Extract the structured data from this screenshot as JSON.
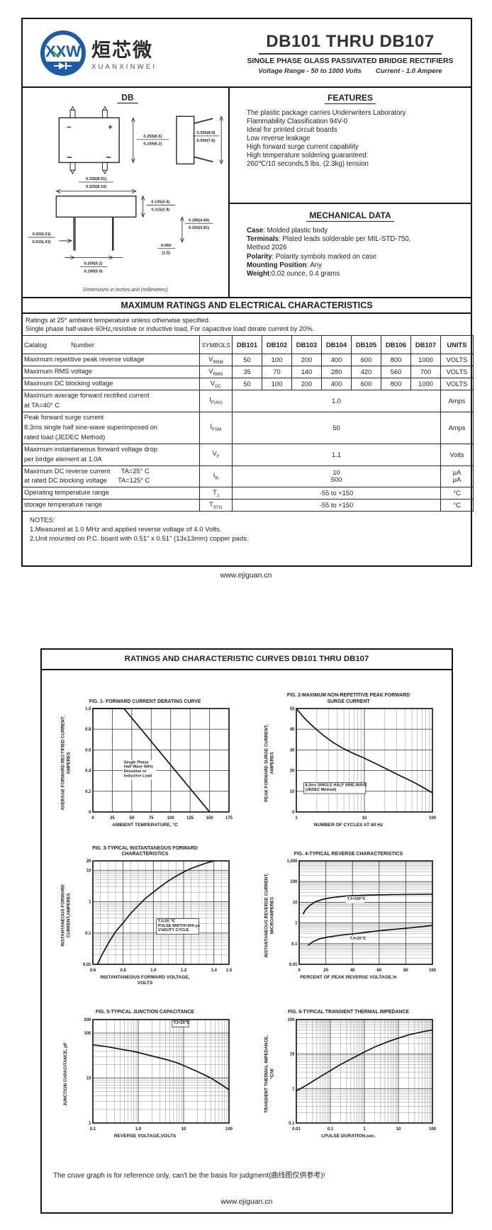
{
  "page1": {
    "logo": {
      "monogram": "XXW",
      "cn": "烜芯微",
      "en": "XUANXINWEI",
      "blue": "#1c5ca8",
      "green": "#3fa13f"
    },
    "header": {
      "title": "DB101 THRU DB107",
      "subtitle": "SINGLE PHASE GLASS PASSIVATED BRIDGE RECTIFIERS",
      "tagline_left": "Voltage Range - 50 to 1000 Volts",
      "tagline_right": "Current -  1.0 Ampere"
    },
    "package": {
      "name": "DB",
      "caption": "Dimensions in inches and (millimeters)",
      "marks": {
        "minus": "−",
        "plus": "+",
        "ac1": "~",
        "ac2": "~"
      },
      "dims": {
        "height_top": "0.255(6.5)",
        "height_bot": "0.245(6.2)",
        "side_top": "0.350(8.9)",
        "side_bot": "0.300(7.6)",
        "width_top": "0.335(8.51)",
        "width_bot": "0.325(8.10)",
        "body_top": "0.135(3.4)",
        "body_bot": "0.115(2.9)",
        "lead_top": "0.185(4.69)",
        "lead_bot": "0.150(3.81)",
        "leadw_top": "0.020(.51)",
        "leadw_bot": "0.016(.41)",
        "pitch_top": "0.205(5.2)",
        "pitch_bot": "0.195(5.0)",
        "stand_top": "0.060",
        "stand_bot": "(1.5)"
      }
    },
    "features": {
      "title": "FEATURES",
      "lines": [
        "The plastic package carries Underwriters Laboratory",
        "Flammability Classification 94V-0",
        "Ideal for printed circuit boards",
        "Low reverse leakage",
        "High forward surge current capability",
        "High temperature soldering guaranteed:",
        "260℃/10 seconds,5 lbs. (2.3kg) tension"
      ]
    },
    "mechanical": {
      "title": "MECHANICAL DATA",
      "items": [
        {
          "key": "Case",
          "text": ": Molded plastic body"
        },
        {
          "key": "Terminals",
          "text": ": Plated leads solderable per MIL-STD-750,"
        },
        {
          "key": "",
          "text": " Method 2026"
        },
        {
          "key": "Polarity",
          "text": ": Polarity symbols marked on case"
        },
        {
          "key": "Mounting Position",
          "text": ": Any"
        },
        {
          "key": "Weight",
          "text": ":0.02 ounce, 0.4 grams"
        }
      ]
    },
    "ratings": {
      "title": "MAXIMUM RATINGS AND ELECTRICAL CHARACTERISTICS",
      "conditions": [
        "Ratings at 25* ambient temperature unless otherwise specified.",
        "Single phase half-wave 60Hz,resistive or inductive load, For capacitive load derate current by 20%."
      ],
      "col_headers": {
        "catalog": "Catalog",
        "number": "Number",
        "symbols": "SYMBOLS",
        "parts": [
          "DB101",
          "DB102",
          "DB103",
          "DB104",
          "DB105",
          "DB106",
          "DB107"
        ],
        "units": "UNITS"
      },
      "rows": [
        {
          "label_lines": [
            "Maximum repetitive peak reverse voltage"
          ],
          "sym": "V",
          "sub": "RRM",
          "values": [
            "50",
            "100",
            "200",
            "400",
            "600",
            "800",
            "1000"
          ],
          "units": [
            "VOLTS"
          ]
        },
        {
          "label_lines": [
            "Maximum RMS voltage"
          ],
          "sym": "V",
          "sub": "RMS",
          "values": [
            "35",
            "70",
            "140",
            "280",
            "420",
            "560",
            "700"
          ],
          "units": [
            "VOLTS"
          ]
        },
        {
          "label_lines": [
            "Maximum DC blocking voltage"
          ],
          "sym": "V",
          "sub": "DC",
          "values": [
            "50",
            "100",
            "200",
            "400",
            "600",
            "800",
            "1000"
          ],
          "units": [
            "VOLTS"
          ]
        },
        {
          "label_lines": [
            "Maximum average forward rectified current",
            "at TA=40° C"
          ],
          "sym": "I",
          "sub": "F(AV)",
          "span": "1.0",
          "units": [
            "Amps"
          ]
        },
        {
          "label_lines": [
            "Peak forward surge current",
            "8.3ms single half sine-wave superimposed on",
            "rated load (JEDEC Method)"
          ],
          "sym": "I",
          "sub": "FSM",
          "span": "50",
          "units": [
            "Amps"
          ]
        },
        {
          "label_lines": [
            "Maximum instantaneous forward voltage drop",
            "per birdge element at 1.0A"
          ],
          "sym": "V",
          "sub": "F",
          "span": "1.1",
          "units": [
            "Volts"
          ]
        },
        {
          "label_lines": [
            "Maximum DC reverse current      TA=25° C",
            "at rated DC blocking voltage      TA=125° C"
          ],
          "sym": "I",
          "sub": "R",
          "span_lines": [
            "10",
            "500"
          ],
          "units": [
            "μA",
            "μA"
          ]
        },
        {
          "label_lines": [
            "Operating temperature range"
          ],
          "sym": "T",
          "sub": "J",
          "span": "-55 to +150",
          "units": [
            "°C"
          ]
        },
        {
          "label_lines": [
            "storage temperature range"
          ],
          "sym": "T",
          "sub": "STG",
          "span": "-55 to +150",
          "units": [
            "°C"
          ]
        }
      ],
      "notes": [
        "NOTES:",
        "1.Measured at 1.0 MHz and applied reverse voltage of 4.0 Volts.",
        "2.Unit mounted on P.C. board with 0.51\"  x 0.51\"  (13x13mm) copper pads."
      ]
    },
    "footer": "www.ejiguan.cn"
  },
  "page2": {
    "title": "RATINGS AND CHARACTERISTIC CURVES DB101 THRU DB107",
    "note": "The cruve graph is for reference only, can't be the basis for judgment(曲线图仅供参考)!",
    "footer": "www.ejiguan.cn"
  },
  "chart_data": [
    {
      "id": "fig1",
      "type": "line",
      "title": "FIG. 1- FORWARD CURRENT DERATING CURVE",
      "ylabel": "AVERAGE FORWARD RECTIFIED CURRENT,\nAMPERES",
      "xlabel": "AMBIENT TEMPERATURE, °C",
      "xscale": "linear",
      "xmin": 0,
      "xmax": 175,
      "yscale": "linear",
      "ymin": 0,
      "ymax": 1.0,
      "xticks": [
        {
          "v": 0,
          "l": "0"
        },
        {
          "v": 25,
          "l": "25"
        },
        {
          "v": 50,
          "l": "50"
        },
        {
          "v": 75,
          "l": "75"
        },
        {
          "v": 100,
          "l": "100"
        },
        {
          "v": 125,
          "l": "125"
        },
        {
          "v": 150,
          "l": "150"
        },
        {
          "v": 175,
          "l": "175"
        }
      ],
      "yticks": [
        {
          "v": 0,
          "l": "0"
        },
        {
          "v": 0.2,
          "l": "0.2"
        },
        {
          "v": 0.4,
          "l": "0.4"
        },
        {
          "v": 0.6,
          "l": "0.6"
        },
        {
          "v": 0.8,
          "l": "0.8"
        },
        {
          "v": 1.0,
          "l": "1.0"
        }
      ],
      "series": [
        {
          "name": "derating-curve",
          "points": [
            [
              0,
              1
            ],
            [
              40,
              1
            ],
            [
              150,
              0
            ]
          ]
        }
      ],
      "annotations": [
        {
          "x": 40,
          "y": 0.47,
          "lines": [
            "Single Phase",
            "Half Wave 60Hz",
            "Resistive or",
            "Inductive Load"
          ],
          "boxed": false
        }
      ]
    },
    {
      "id": "fig2",
      "type": "line",
      "title": "FIG. 2-MAXIMUM NON-REPETITIVE PEAK FORWARD\nSURGE CURRENT",
      "ylabel": "PEAK  FORWARD SURGE CURRENT,\nAMPERES",
      "xlabel": "NUMBER OF CYCLES AT 60 Hz",
      "xscale": "log",
      "xmin": 1,
      "xmax": 100,
      "yscale": "linear",
      "ymin": 0,
      "ymax": 50,
      "xticks": [
        {
          "v": 1,
          "l": "1"
        },
        {
          "v": 10,
          "l": "10"
        },
        {
          "v": 100,
          "l": "100"
        }
      ],
      "yticks": [
        {
          "v": 0,
          "l": "0"
        },
        {
          "v": 10,
          "l": "10"
        },
        {
          "v": 20,
          "l": "20"
        },
        {
          "v": 30,
          "l": "30"
        },
        {
          "v": 40,
          "l": "40"
        },
        {
          "v": 50,
          "l": "50"
        }
      ],
      "series": [
        {
          "name": "surge-current",
          "points": [
            [
              1,
              50
            ],
            [
              1.3,
              45.5
            ],
            [
              1.8,
              41
            ],
            [
              2.5,
              37
            ],
            [
              3.5,
              33.5
            ],
            [
              5,
              30.5
            ],
            [
              7,
              28.2
            ],
            [
              10,
              26
            ],
            [
              15,
              23.2
            ],
            [
              22,
              20.5
            ],
            [
              33,
              17.6
            ],
            [
              50,
              14.8
            ],
            [
              70,
              12.2
            ],
            [
              100,
              9.2
            ]
          ]
        }
      ],
      "annotations": [
        {
          "x": 1.35,
          "y": 12.5,
          "lines": [
            "8.3ms SINGLE HALF SINE-WAVE",
            "(JEDEC Method)"
          ],
          "boxed": true
        }
      ]
    },
    {
      "id": "fig3",
      "type": "line",
      "title": "FIG. 3-TYPICAL INSTANTANEOUS FORWARD\nCHARACTERISTICS",
      "ylabel": "INSTANTANEOUS FORWARD\nCURRENT,AMPERES",
      "xlabel": "INSTANTANEOUS FORWARD VOLTAGE,\nVOLTS",
      "xscale": "linear",
      "xmin": 0.6,
      "xmax": 1.5,
      "xminor": 0.05,
      "yscale": "log",
      "ymin": 0.01,
      "ymax": 20,
      "xticks": [
        {
          "v": 0.6,
          "l": "0.6"
        },
        {
          "v": 0.8,
          "l": "0.8"
        },
        {
          "v": 1.0,
          "l": "1.0"
        },
        {
          "v": 1.2,
          "l": "1.2"
        },
        {
          "v": 1.4,
          "l": "1.4"
        },
        {
          "v": 1.5,
          "l": "1.5"
        }
      ],
      "yticks": [
        {
          "v": 0.01,
          "l": "0.01"
        },
        {
          "v": 0.1,
          "l": "0.1"
        },
        {
          "v": 1,
          "l": "1"
        },
        {
          "v": 10,
          "l": "10"
        },
        {
          "v": 20,
          "l": "20"
        }
      ],
      "series": [
        {
          "name": "forward-characteristic",
          "points": [
            [
              0.63,
              0.01
            ],
            [
              0.66,
              0.02
            ],
            [
              0.7,
              0.045
            ],
            [
              0.75,
              0.11
            ],
            [
              0.8,
              0.21
            ],
            [
              0.85,
              0.42
            ],
            [
              0.9,
              0.75
            ],
            [
              0.95,
              1.3
            ],
            [
              1.0,
              2.0
            ],
            [
              1.05,
              3.1
            ],
            [
              1.1,
              4.6
            ],
            [
              1.15,
              6.5
            ],
            [
              1.2,
              8.8
            ],
            [
              1.25,
              11.5
            ],
            [
              1.3,
              14
            ],
            [
              1.35,
              17
            ],
            [
              1.4,
              20
            ]
          ]
        }
      ],
      "annotations": [
        {
          "x": 1.03,
          "y": 0.22,
          "lines": [
            "TJ=25 ℃",
            "PULSE WIDTH=300 μs",
            "1%DUTY CYCLE"
          ],
          "boxed": true
        }
      ]
    },
    {
      "id": "fig4",
      "type": "line",
      "title": "FIG. 4-TYPICAL REVERSE CHARACTERISTICS",
      "ylabel": "INSTANTANEOUS REVERSE CURRENT,\nMICROAMPERES",
      "xlabel": "PERCENT OF PEAK REVERSE VOLTAGE,%",
      "xscale": "linear",
      "xmin": 0,
      "xmax": 100,
      "yscale": "log",
      "ymin": 0.01,
      "ymax": 1000,
      "xticks": [
        {
          "v": 0,
          "l": "0"
        },
        {
          "v": 20,
          "l": "20"
        },
        {
          "v": 40,
          "l": "40"
        },
        {
          "v": 60,
          "l": "60"
        },
        {
          "v": 80,
          "l": "80"
        },
        {
          "v": 100,
          "l": "100"
        }
      ],
      "yticks": [
        {
          "v": 0.01,
          "l": "0.01"
        },
        {
          "v": 0.1,
          "l": "0.1"
        },
        {
          "v": 1,
          "l": "1"
        },
        {
          "v": 10,
          "l": "10"
        },
        {
          "v": 100,
          "l": "100"
        },
        {
          "v": 1000,
          "l": "1,000"
        }
      ],
      "series": [
        {
          "name": "TJ=100C",
          "points": [
            [
              3,
              2.8
            ],
            [
              5,
              4.5
            ],
            [
              8,
              7
            ],
            [
              12,
              10.5
            ],
            [
              18,
              14
            ],
            [
              25,
              17
            ],
            [
              35,
              20
            ],
            [
              50,
              22
            ],
            [
              70,
              23.5
            ],
            [
              100,
              24.5
            ]
          ]
        },
        {
          "name": "TJ=25C",
          "points": [
            [
              7,
              0.085
            ],
            [
              10,
              0.12
            ],
            [
              15,
              0.17
            ],
            [
              22,
              0.21
            ],
            [
              32,
              0.26
            ],
            [
              45,
              0.32
            ],
            [
              60,
              0.42
            ],
            [
              80,
              0.55
            ],
            [
              100,
              0.75
            ]
          ]
        }
      ],
      "annotations": [
        {
          "x": 36,
          "y": 13,
          "lines": [
            "TJ=100℃"
          ],
          "boxed": false
        },
        {
          "x": 38,
          "y": 0.16,
          "lines": [
            "TJ=25℃"
          ],
          "boxed": false
        }
      ]
    },
    {
      "id": "fig5",
      "type": "line",
      "title": "FIG. 5-TYPICAL JUNCTION CAPACITANCE",
      "ylabel": "JUNCTION CAPACITANCE, pF",
      "xlabel": "REVERSE VOLTAGE,VOLTS",
      "xscale": "log",
      "xmin": 0.1,
      "xmax": 100,
      "yscale": "log",
      "ymin": 1,
      "ymax": 200,
      "xticks": [
        {
          "v": 0.1,
          "l": "0.1"
        },
        {
          "v": 1,
          "l": "1.0"
        },
        {
          "v": 10,
          "l": "10"
        },
        {
          "v": 100,
          "l": "100"
        }
      ],
      "yticks": [
        {
          "v": 1,
          "l": "1"
        },
        {
          "v": 10,
          "l": "10"
        },
        {
          "v": 100,
          "l": "100"
        },
        {
          "v": 200,
          "l": "200"
        }
      ],
      "series": [
        {
          "name": "junction-capacitance",
          "points": [
            [
              0.1,
              55
            ],
            [
              0.2,
              50
            ],
            [
              0.4,
              44
            ],
            [
              0.7,
              40
            ],
            [
              1,
              37
            ],
            [
              2,
              31
            ],
            [
              4,
              26
            ],
            [
              7,
              22
            ],
            [
              10,
              19
            ],
            [
              20,
              14
            ],
            [
              40,
              10
            ],
            [
              70,
              7
            ],
            [
              100,
              5.5
            ]
          ]
        }
      ],
      "annotations": [
        {
          "x": 6,
          "y": 160,
          "lines": [
            "TJ=25℃"
          ],
          "boxed": true
        }
      ]
    },
    {
      "id": "fig6",
      "type": "line",
      "title": "FIG. 6-TYPICAL TRANSIENT THERMAL IMPEDANCE",
      "ylabel": "TRANSIENT THERMAL IMPEDANCE,\n℃/W",
      "xlabel": "t,PULSE DURATION,sec.",
      "xscale": "log",
      "xmin": 0.01,
      "xmax": 100,
      "yscale": "log",
      "ymin": 0.1,
      "ymax": 100,
      "xticks": [
        {
          "v": 0.01,
          "l": "0.01"
        },
        {
          "v": 0.1,
          "l": "0.1"
        },
        {
          "v": 1,
          "l": "1"
        },
        {
          "v": 10,
          "l": "10"
        },
        {
          "v": 100,
          "l": "100"
        }
      ],
      "yticks": [
        {
          "v": 0.1,
          "l": "0.1"
        },
        {
          "v": 1,
          "l": "1"
        },
        {
          "v": 10,
          "l": "10"
        },
        {
          "v": 100,
          "l": "100"
        }
      ],
      "series": [
        {
          "name": "thermal-impedance",
          "points": [
            [
              0.01,
              0.85
            ],
            [
              0.02,
              1.25
            ],
            [
              0.05,
              2.2
            ],
            [
              0.1,
              3.3
            ],
            [
              0.2,
              5
            ],
            [
              0.5,
              8
            ],
            [
              1,
              11.5
            ],
            [
              2,
              16
            ],
            [
              5,
              23
            ],
            [
              10,
              29
            ],
            [
              20,
              36
            ],
            [
              50,
              44
            ],
            [
              100,
              50
            ]
          ]
        }
      ],
      "annotations": []
    }
  ]
}
